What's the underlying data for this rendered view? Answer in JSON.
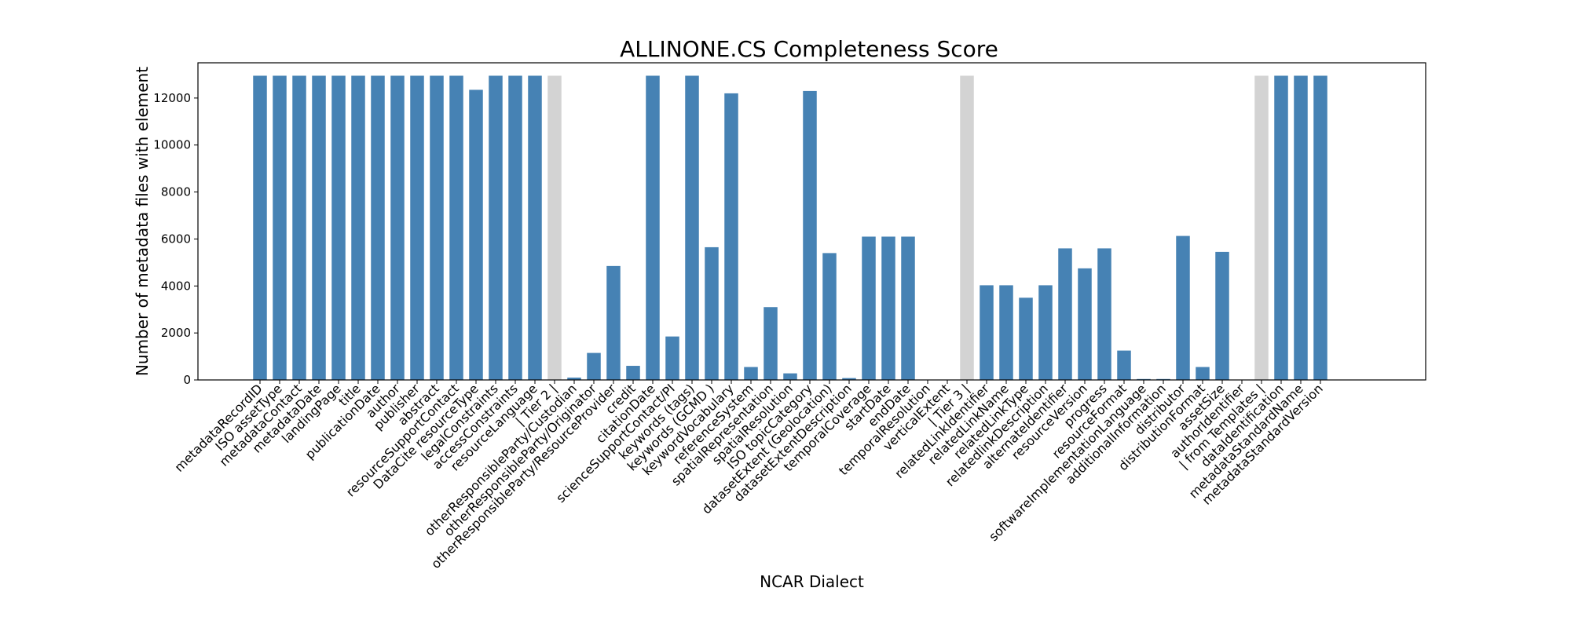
{
  "chart_data": {
    "type": "bar",
    "title": "ALLINONE.CS Completeness Score",
    "xlabel": "NCAR Dialect",
    "ylabel": "Number of metadata files with element",
    "ylim": [
      0,
      13500
    ],
    "yticks": [
      0,
      2000,
      4000,
      6000,
      8000,
      10000,
      12000
    ],
    "grid": false,
    "colors": {
      "bar": "#4682b4",
      "separator": "#d3d3d3"
    },
    "categories": [
      "metadataRecordID",
      "ISO assetType",
      "metadataContact",
      "metadataDate",
      "landingPage",
      "title",
      "publicationDate",
      "author",
      "publisher",
      "abstract",
      "resourceSupportContact",
      "DataCite resourceType",
      "legalConstraints",
      "accessConstraints",
      "resourceLanguage",
      "| Tier 2 |",
      "otherResponsibleParty/Custodian",
      "otherResponsibleParty/Originator",
      "otherResponsibleParty/ResourceProvider",
      "credit",
      "citationDate",
      "scienceSupportContact/PI",
      "keywords (tags)",
      "keywords (GCMD )",
      "keywordVocabulary",
      "referenceSystem",
      "spatialRepresentation",
      "spatialResolution",
      "ISO topicCategory",
      "datasetExtent (Geolocation)",
      "datasetExtentDescription",
      "temporalCoverage",
      "startDate",
      "endDate",
      "temporalResolution",
      "verticalExtent",
      "| Tier 3 |",
      "relatedLinkIdentifier",
      "relatedLinkName",
      "relatedLinkType",
      "relatedlinkDescription",
      "alternateIdentifier",
      "resourceVersion",
      "progress",
      "resourceFormat",
      "softwareImplementationLanguage",
      "additionalInformation",
      "distributor",
      "distributionFormat",
      "assetSize",
      "authorIdentifier",
      "| from Templates |",
      "dataIdentification",
      "metadataStandardName",
      "metadataStandardVersion"
    ],
    "values": [
      12950,
      12950,
      12950,
      12950,
      12950,
      12950,
      12950,
      12950,
      12950,
      12950,
      12950,
      12350,
      12950,
      12950,
      12950,
      12950,
      100,
      1150,
      4850,
      600,
      12950,
      1850,
      12950,
      5650,
      12200,
      550,
      3100,
      280,
      12300,
      5400,
      80,
      6100,
      6100,
      6100,
      10,
      10,
      12950,
      4030,
      4030,
      3500,
      4030,
      5600,
      4750,
      5600,
      1250,
      40,
      40,
      6130,
      550,
      5450,
      10,
      12950,
      12950,
      12950,
      12950
    ],
    "separator_categories": [
      "| Tier 2 |",
      "| Tier 3 |",
      "| from Templates |"
    ]
  }
}
